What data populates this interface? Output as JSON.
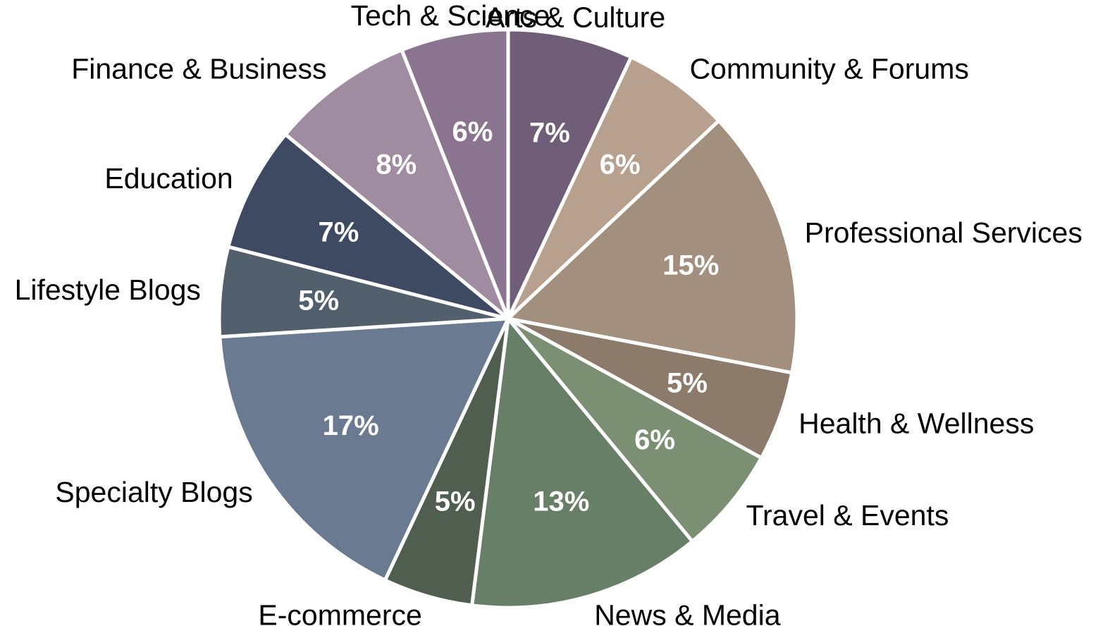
{
  "chart_data": {
    "type": "pie",
    "title": "",
    "start": "top, clockwise",
    "slices": [
      {
        "label": "Arts & Culture",
        "value": 7,
        "display": "7%",
        "color": "#705e78"
      },
      {
        "label": "Community & Forums",
        "value": 6,
        "display": "6%",
        "color": "#b8a08e"
      },
      {
        "label": "Professional Services",
        "value": 15,
        "display": "15%",
        "color": "#a38f7e"
      },
      {
        "label": "Health & Wellness",
        "value": 5,
        "display": "5%",
        "color": "#8c7a6b"
      },
      {
        "label": "Travel & Events",
        "value": 6,
        "display": "6%",
        "color": "#7b8f72"
      },
      {
        "label": "News & Media",
        "value": 13,
        "display": "13%",
        "color": "#667f66"
      },
      {
        "label": "E-commerce",
        "value": 5,
        "display": "5%",
        "color": "#4f5e4f"
      },
      {
        "label": "Specialty Blogs",
        "value": 17,
        "display": "17%",
        "color": "#6a7a90"
      },
      {
        "label": "Lifestyle Blogs",
        "value": 5,
        "display": "5%",
        "color": "#52606d"
      },
      {
        "label": "Education",
        "value": 7,
        "display": "7%",
        "color": "#3e4a61"
      },
      {
        "label": "Finance & Business",
        "value": 8,
        "display": "8%",
        "color": "#a08ca0"
      },
      {
        "label": "Tech & Science",
        "value": 6,
        "display": "6%",
        "color": "#8a7490"
      }
    ]
  }
}
